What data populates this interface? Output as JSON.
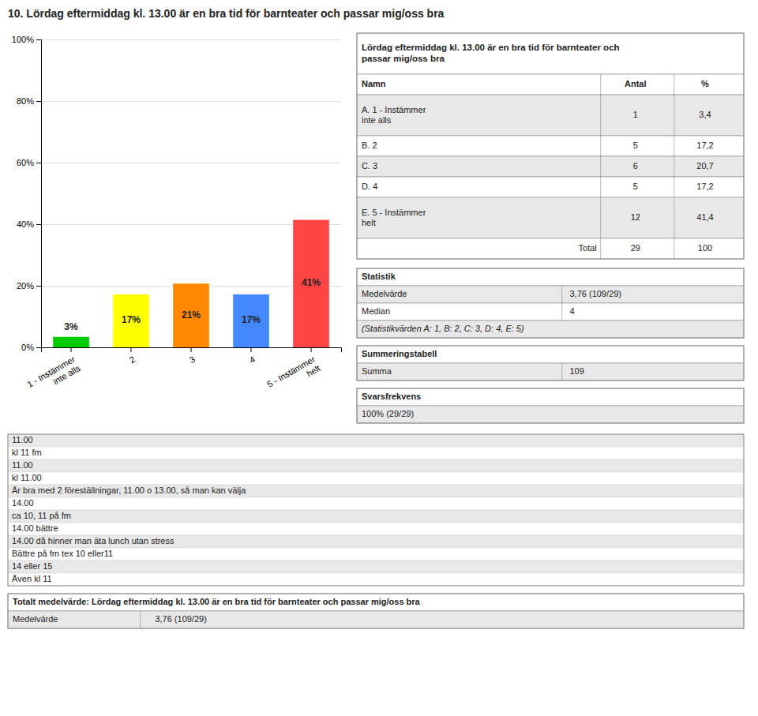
{
  "chart_data": {
    "type": "bar",
    "title": "10. Lördag eftermiddag kl. 13.00 är en bra tid för barnteater och passar mig/oss bra",
    "categories": [
      "1 - Instämmer\ninte alls",
      "2",
      "3",
      "4",
      "5 - Instämmer\nhelt"
    ],
    "values": [
      3.4,
      17.2,
      20.7,
      17.2,
      41.4
    ],
    "value_labels": [
      "3%",
      "17%",
      "21%",
      "17%",
      "41%"
    ],
    "colors": [
      "#00cc00",
      "#ffff00",
      "#ff8800",
      "#4488ff",
      "#ff4444"
    ],
    "ylim": [
      0,
      100
    ],
    "yticks": [
      {
        "value": 0,
        "label": "0%"
      },
      {
        "value": 20,
        "label": "20%"
      },
      {
        "value": 40,
        "label": "40%"
      },
      {
        "value": 60,
        "label": "60%"
      },
      {
        "value": 80,
        "label": "80%"
      },
      {
        "value": 100,
        "label": "100%"
      }
    ],
    "grid": true,
    "data_labels": true
  },
  "table": {
    "title": "Lördag eftermiddag kl. 13.00 är en bra tid för barnteater och\npassar mig/oss bra",
    "header": [
      "Namn",
      "Antal",
      "%"
    ],
    "rows": [
      [
        "A. 1 - Instämmer\ninte alls",
        "1",
        "3,4"
      ],
      [
        "B. 2",
        "5",
        "17,2"
      ],
      [
        "C. 3",
        "6",
        "20,7"
      ],
      [
        "D. 4",
        "5",
        "17,2"
      ],
      [
        "E. 5 - Instämmer\nhelt",
        "12",
        "41,4"
      ],
      [
        "Total",
        "29",
        "100"
      ]
    ]
  },
  "stat_table": {
    "title": "Statistik",
    "rows": [
      [
        "Medelvärde",
        "3,76 (109/29)"
      ],
      [
        "Median",
        "4"
      ],
      [
        "(Statistikvärden A: 1, B: 2, C: 3, D: 4, E: 5)"
      ]
    ]
  },
  "sum_table": {
    "title": "Summeringstabell",
    "rows": [
      [
        "Summa",
        "109"
      ]
    ]
  },
  "response_table": {
    "title": "Svarsfrekvens",
    "rows": [
      [
        "100% (29/29)"
      ]
    ]
  },
  "comments": [
    "11.00",
    "kl 11 fm",
    "11.00",
    "kl 11.00",
    "Är bra med 2 föreställningar, 11.00 o 13.00, så man kan välja",
    "14.00",
    "ca 10, 11 på fm",
    "14.00 bättre",
    "14.00 då hinner man äta lunch utan stress",
    "Bättre på fm tex 10 eller11",
    "14 eller 15",
    "Även kl 11"
  ],
  "total_table": {
    "title": "Totalt medelvärde: Lördag eftermiddag kl. 13.00 är en bra tid för barnteater och passar mig/oss bra",
    "rows": [
      [
        "Medelvärde",
        "3,76 (109/29)"
      ]
    ]
  }
}
